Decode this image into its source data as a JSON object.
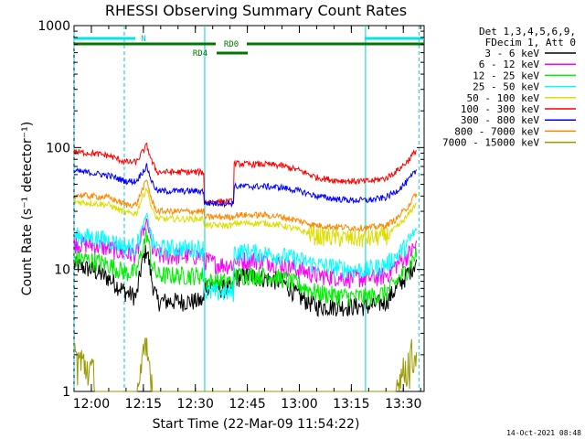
{
  "chart_data": {
    "type": "line",
    "title": "RHESSI Observing Summary Count Rates",
    "xlabel": "Start Time (22-Mar-09 11:54:22)",
    "ylabel": "Count Rate (s⁻¹ detector⁻¹)",
    "y_scale": "log",
    "ylim": [
      1,
      1000
    ],
    "xlim_minutes": [
      -5,
      96
    ],
    "x_ticks": [
      "12:00",
      "12:15",
      "12:30",
      "12:45",
      "13:00",
      "13:15",
      "13:30"
    ],
    "y_ticks": [
      "1",
      "10",
      "100",
      "1000"
    ],
    "grid": false,
    "legend_position": "right",
    "legend_header": [
      "Det 1,3,4,5,6,9,",
      "FDecim 1, Att 0"
    ],
    "footer_timestamp": "14-Oct-2021 08:48",
    "annotations": {
      "night_label": "N",
      "rd0_label": "RD0",
      "rd4_label": "RD4",
      "vertical_markers_minutes": [
        -5,
        9.5,
        32.7,
        79.1,
        94.5
      ]
    },
    "series_x_minutes": [
      -5,
      0,
      5,
      10,
      13,
      14.5,
      16,
      17.5,
      19,
      22,
      27,
      32.5,
      32.6,
      37,
      41,
      41.1,
      45,
      50,
      55,
      60,
      65,
      70,
      75,
      80,
      85,
      88,
      91,
      94
    ],
    "series": [
      {
        "name": "3 - 6 keV",
        "color": "#000000",
        "values": [
          11,
          10,
          8.5,
          6.5,
          6,
          11,
          15,
          8,
          5.5,
          5.5,
          5.5,
          5.5,
          7.5,
          7,
          7,
          8.5,
          9,
          8.5,
          8,
          6,
          5,
          5,
          5,
          5,
          5.5,
          7,
          9,
          12
        ]
      },
      {
        "name": "6 - 12 keV",
        "color": "#ff00ff",
        "values": [
          16.5,
          16,
          15,
          13.5,
          13.5,
          18,
          25,
          15,
          13,
          13,
          13,
          13,
          12,
          11,
          11,
          12,
          12,
          12,
          11,
          10,
          9,
          8.8,
          8.5,
          8.5,
          9,
          11,
          13,
          16
        ]
      },
      {
        "name": "12 - 25 keV",
        "color": "#00ee00",
        "values": [
          12.5,
          12,
          11,
          9.5,
          9.5,
          14,
          20,
          11,
          9,
          9,
          9,
          9,
          8,
          8,
          8,
          9,
          9,
          9,
          8.5,
          7.5,
          6.5,
          6.2,
          6,
          6,
          6.5,
          8,
          10,
          14
        ]
      },
      {
        "name": "25 - 50 keV",
        "color": "#00ffff",
        "values": [
          19,
          18.5,
          17.5,
          15.5,
          15.5,
          21,
          28,
          17,
          15,
          15,
          15,
          15,
          6.5,
          6.5,
          6.5,
          14,
          14,
          13.5,
          13,
          12,
          11,
          10.5,
          10,
          10,
          11,
          13,
          16,
          22
        ]
      },
      {
        "name": "50 - 100 keV",
        "color": "#dddd00",
        "values": [
          36,
          35,
          34,
          29,
          29,
          38,
          47,
          31,
          26,
          26,
          26,
          26,
          23,
          23,
          23,
          24,
          24,
          24,
          23,
          21,
          19,
          18.5,
          18,
          18,
          19,
          22,
          27,
          36
        ]
      },
      {
        "name": "100 - 300 keV",
        "color": "#ff0000",
        "values": [
          92,
          90,
          86,
          76,
          76,
          90,
          104,
          76,
          63,
          63,
          63,
          63,
          36,
          36,
          36,
          74,
          73,
          73,
          71,
          65,
          57,
          54,
          53,
          53,
          56,
          64,
          76,
          97
        ]
      },
      {
        "name": "300 - 800 keV",
        "color": "#0000ff",
        "values": [
          64,
          62,
          59,
          53,
          53,
          62,
          70,
          52,
          44,
          44,
          44,
          44,
          35,
          35,
          35,
          48,
          48,
          48,
          47,
          44,
          40,
          38,
          37,
          37,
          39,
          44,
          52,
          66
        ]
      },
      {
        "name": "800 - 7000 keV",
        "color": "#ff8800",
        "values": [
          41,
          40,
          39,
          34,
          34,
          44,
          54,
          36,
          30,
          30,
          30,
          30,
          27,
          27,
          27,
          28,
          28,
          28,
          27,
          25,
          23,
          22.5,
          22,
          22,
          23,
          26,
          32,
          43
        ]
      },
      {
        "name": "7000 - 15000 keV",
        "color": "#999900",
        "values": [
          2.2,
          1.6,
          1.2,
          1.0,
          1.0,
          1.8,
          2.3,
          1.4,
          1.0,
          1.0,
          1.0,
          1.0,
          1.0,
          1.0,
          1.0,
          1.0,
          1.0,
          1.0,
          1.0,
          1.0,
          1.0,
          1.0,
          1.0,
          1.0,
          1.0,
          1.2,
          1.8,
          2.5
        ]
      }
    ]
  }
}
